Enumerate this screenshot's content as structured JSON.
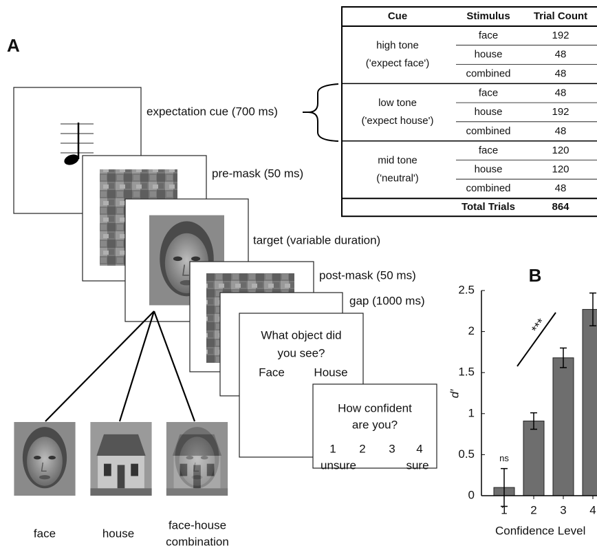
{
  "panel_a": {
    "label": "A",
    "stages": [
      "expectation cue (700 ms)",
      "pre-mask (50 ms)",
      "target (variable duration)",
      "post-mask (50 ms)",
      "gap (1000 ms)"
    ],
    "question": {
      "lines": [
        "What object did",
        "you see?"
      ],
      "options": [
        "Face",
        "House"
      ]
    },
    "confidence": {
      "lines": [
        "How confident",
        "are you?"
      ],
      "scale": [
        "1",
        "2",
        "3",
        "4"
      ],
      "anchors": [
        "unsure",
        "sure"
      ]
    },
    "stimuli": [
      {
        "lines": [
          "face"
        ]
      },
      {
        "lines": [
          "house"
        ]
      },
      {
        "lines": [
          "face-house",
          "combination"
        ]
      }
    ]
  },
  "table": {
    "header": [
      "Cue",
      "Stimulus",
      "Trial Count"
    ],
    "groups": [
      {
        "cue": [
          "high tone",
          "('expect face')"
        ],
        "rows": [
          [
            "face",
            "192"
          ],
          [
            "house",
            "48"
          ],
          [
            "combined",
            "48"
          ]
        ]
      },
      {
        "cue": [
          "low tone",
          "('expect house')"
        ],
        "rows": [
          [
            "face",
            "48"
          ],
          [
            "house",
            "192"
          ],
          [
            "combined",
            "48"
          ]
        ]
      },
      {
        "cue": [
          "mid tone",
          "('neutral')"
        ],
        "rows": [
          [
            "face",
            "120"
          ],
          [
            "house",
            "120"
          ],
          [
            "combined",
            "48"
          ]
        ]
      }
    ],
    "total": [
      "Total Trials",
      "864"
    ]
  },
  "chart_data": {
    "type": "bar",
    "panel_label": "B",
    "categories": [
      "1",
      "2",
      "3",
      "4"
    ],
    "values": [
      0.1,
      0.91,
      1.68,
      2.27
    ],
    "errors": [
      0.23,
      0.1,
      0.12,
      0.2
    ],
    "bar_labels": [
      "ns",
      null,
      null,
      null
    ],
    "trend_label": "***",
    "color": "#6e6e6e",
    "ylabel": "d′",
    "xlabel": "Confidence Level",
    "ylim": [
      0,
      2.5
    ],
    "yticks": [
      0,
      0.5,
      1,
      1.5,
      2,
      2.5
    ]
  }
}
